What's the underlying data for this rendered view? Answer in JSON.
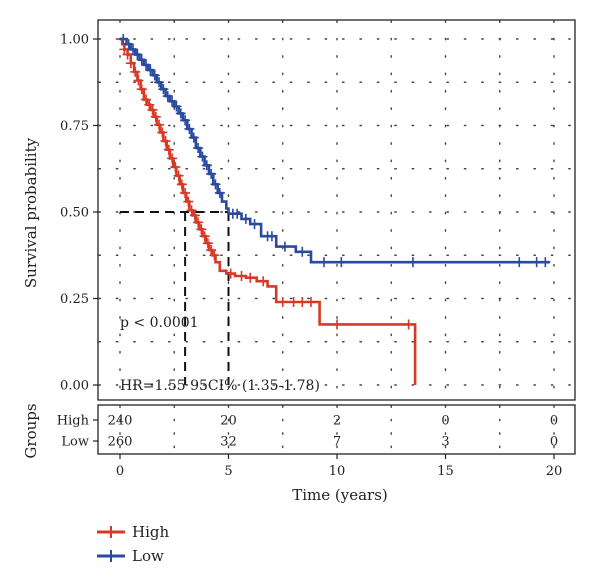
{
  "chart_data": {
    "type": "line",
    "subtype": "kaplan-meier",
    "xlabel": "Time (years)",
    "ylabel": "Survival probability",
    "xlim": [
      0,
      20
    ],
    "ylim": [
      0,
      1
    ],
    "x_ticks": [
      0,
      5,
      10,
      15,
      20
    ],
    "y_ticks": [
      "0.00",
      "0.25",
      "0.50",
      "0.75",
      "1.00"
    ],
    "grid": "dotted",
    "legend_position": "bottom-left",
    "annotations": {
      "p_value": "p < 0.0001",
      "hazard_ratio": "HR=1.55 95CI% (1.35-1.78)"
    },
    "median_reference": {
      "y": 0.5,
      "x_high": 3.0,
      "x_low": 5.0
    },
    "series": [
      {
        "name": "High",
        "color": "#d63a26",
        "steps": [
          [
            0,
            1.0
          ],
          [
            0.1,
            0.985
          ],
          [
            0.2,
            0.97
          ],
          [
            0.35,
            0.955
          ],
          [
            0.5,
            0.93
          ],
          [
            0.65,
            0.905
          ],
          [
            0.8,
            0.88
          ],
          [
            0.95,
            0.855
          ],
          [
            1.1,
            0.825
          ],
          [
            1.25,
            0.81
          ],
          [
            1.4,
            0.795
          ],
          [
            1.55,
            0.775
          ],
          [
            1.7,
            0.752
          ],
          [
            1.85,
            0.73
          ],
          [
            2.0,
            0.705
          ],
          [
            2.15,
            0.68
          ],
          [
            2.3,
            0.655
          ],
          [
            2.45,
            0.63
          ],
          [
            2.6,
            0.605
          ],
          [
            2.75,
            0.58
          ],
          [
            2.9,
            0.555
          ],
          [
            3.05,
            0.53
          ],
          [
            3.2,
            0.505
          ],
          [
            3.35,
            0.49
          ],
          [
            3.5,
            0.47
          ],
          [
            3.65,
            0.45
          ],
          [
            3.8,
            0.43
          ],
          [
            3.95,
            0.41
          ],
          [
            4.1,
            0.39
          ],
          [
            4.25,
            0.375
          ],
          [
            4.4,
            0.355
          ],
          [
            4.6,
            0.33
          ],
          [
            4.9,
            0.322
          ],
          [
            5.3,
            0.315
          ],
          [
            5.8,
            0.31
          ],
          [
            6.3,
            0.3
          ],
          [
            6.8,
            0.285
          ],
          [
            7.2,
            0.24
          ],
          [
            9.2,
            0.175
          ],
          [
            13.6,
            0.0
          ]
        ],
        "censor_x": [
          0.2,
          0.35,
          0.5,
          0.7,
          0.85,
          1.0,
          1.2,
          1.35,
          1.5,
          1.65,
          1.8,
          1.95,
          2.1,
          2.25,
          2.4,
          2.55,
          2.7,
          2.85,
          3.0,
          3.15,
          3.3,
          3.45,
          3.6,
          3.75,
          3.9,
          4.05,
          4.2,
          4.35,
          5.1,
          5.6,
          6.0,
          6.6,
          7.5,
          8.0,
          8.4,
          8.8,
          10.0,
          13.3
        ]
      },
      {
        "name": "Low",
        "color": "#2a4aa0",
        "steps": [
          [
            0,
            1.0
          ],
          [
            0.3,
            0.985
          ],
          [
            0.5,
            0.97
          ],
          [
            0.7,
            0.955
          ],
          [
            0.9,
            0.94
          ],
          [
            1.1,
            0.925
          ],
          [
            1.3,
            0.91
          ],
          [
            1.5,
            0.895
          ],
          [
            1.7,
            0.875
          ],
          [
            1.9,
            0.855
          ],
          [
            2.1,
            0.835
          ],
          [
            2.3,
            0.82
          ],
          [
            2.5,
            0.805
          ],
          [
            2.7,
            0.785
          ],
          [
            2.9,
            0.765
          ],
          [
            3.1,
            0.74
          ],
          [
            3.3,
            0.715
          ],
          [
            3.5,
            0.685
          ],
          [
            3.7,
            0.66
          ],
          [
            3.9,
            0.635
          ],
          [
            4.1,
            0.61
          ],
          [
            4.3,
            0.58
          ],
          [
            4.5,
            0.555
          ],
          [
            4.7,
            0.53
          ],
          [
            4.9,
            0.51
          ],
          [
            5.0,
            0.495
          ],
          [
            5.6,
            0.48
          ],
          [
            6.0,
            0.465
          ],
          [
            6.5,
            0.43
          ],
          [
            7.2,
            0.4
          ],
          [
            8.1,
            0.385
          ],
          [
            8.8,
            0.355
          ],
          [
            19.8,
            0.355
          ]
        ],
        "censor_x": [
          0.15,
          0.4,
          0.6,
          0.8,
          1.0,
          1.2,
          1.4,
          1.6,
          1.8,
          2.0,
          2.2,
          2.4,
          2.6,
          2.8,
          3.0,
          3.2,
          3.4,
          3.6,
          3.8,
          4.0,
          4.2,
          4.4,
          4.6,
          5.2,
          5.4,
          5.8,
          6.2,
          6.8,
          7.0,
          7.6,
          8.4,
          9.4,
          10.2,
          13.5,
          18.4,
          19.2,
          19.6
        ]
      }
    ],
    "risk_table": {
      "title": "Groups",
      "times": [
        0,
        5,
        10,
        15,
        20
      ],
      "rows": [
        {
          "group": "High",
          "counts": [
            "240",
            "20",
            "2",
            "0",
            "0"
          ]
        },
        {
          "group": "Low",
          "counts": [
            "260",
            "32",
            "7",
            "3",
            "0"
          ]
        }
      ]
    }
  }
}
